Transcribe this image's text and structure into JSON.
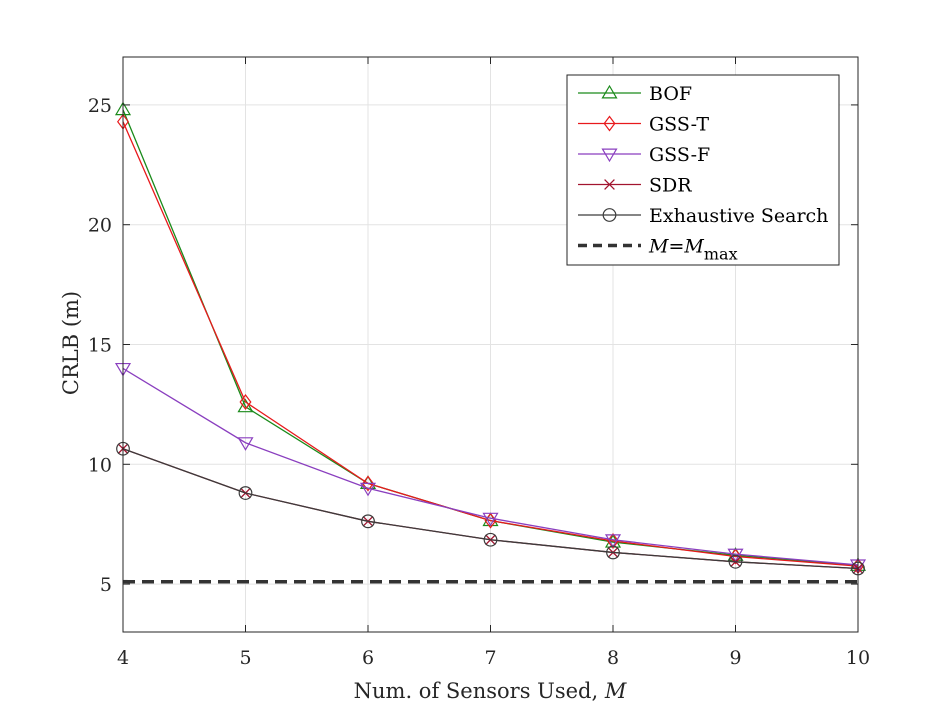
{
  "chart_data": {
    "type": "line",
    "x": [
      4,
      5,
      6,
      7,
      8,
      9,
      10
    ],
    "xlabel": "Num. of Sensors Used, ",
    "xlabel_var": "M",
    "ylabel": "CRLB (m)",
    "xlim": [
      4,
      10
    ],
    "ylim": [
      3,
      27
    ],
    "xticks": [
      "4",
      "5",
      "6",
      "7",
      "8",
      "9",
      "10"
    ],
    "yticks": [
      "5",
      "10",
      "15",
      "20",
      "25"
    ],
    "ytick_values": [
      5,
      10,
      15,
      20,
      25
    ],
    "grid": true,
    "legend_position": "top-right",
    "series": [
      {
        "name": "BOF",
        "color": "#1a8a1a",
        "marker": "triangle-up",
        "values": [
          24.8,
          12.4,
          9.2,
          7.65,
          6.75,
          6.2,
          5.78
        ]
      },
      {
        "name": "GSS-T",
        "color": "#e8191c",
        "marker": "diamond",
        "values": [
          24.3,
          12.6,
          9.2,
          7.65,
          6.8,
          6.15,
          5.75
        ]
      },
      {
        "name": "GSS-F",
        "color": "#8a3fbf",
        "marker": "triangle-down",
        "values": [
          14.0,
          10.9,
          9.0,
          7.75,
          6.85,
          6.25,
          5.8
        ]
      },
      {
        "name": "SDR",
        "color": "#a2142f",
        "marker": "x",
        "values": [
          10.65,
          8.8,
          7.62,
          6.85,
          6.32,
          5.93,
          5.65
        ]
      },
      {
        "name": "Exhaustive Search",
        "color": "#3c3c3c",
        "marker": "circle",
        "values": [
          10.65,
          8.8,
          7.62,
          6.85,
          6.32,
          5.93,
          5.65
        ]
      }
    ],
    "reference_line": {
      "label_prefix": "M",
      "label_eq": "=",
      "label_var": "M",
      "label_sub": "max",
      "value": 5.1,
      "style": "dashed",
      "color": "#333333"
    }
  }
}
